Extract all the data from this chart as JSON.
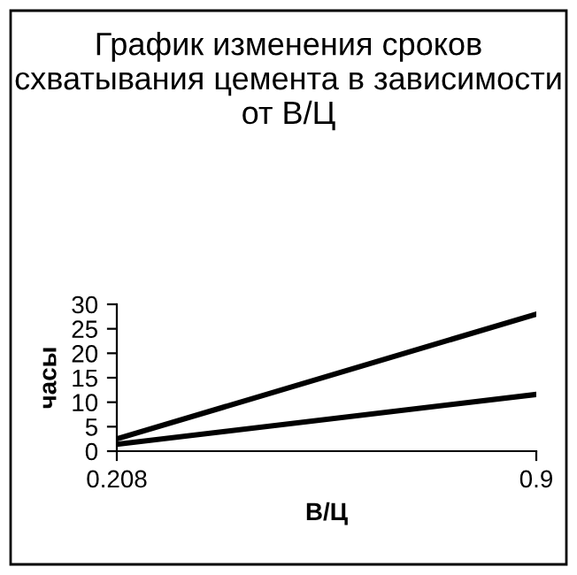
{
  "chart_data": {
    "type": "line",
    "title": "График изменения сроков схватывания цемента в зависимости от В/Ц",
    "xlabel": "В/Ц",
    "ylabel": "часы",
    "x": [
      0.208,
      0.9
    ],
    "series": [
      {
        "color": "#000000",
        "values": [
          2.5,
          28
        ]
      },
      {
        "color": "#000000",
        "values": [
          1.4,
          11.6
        ]
      }
    ],
    "xlim": [
      0.208,
      0.9
    ],
    "xticks": [
      0.208,
      0.9
    ],
    "ylim": [
      0,
      30
    ],
    "yticks": [
      0,
      5,
      10,
      15,
      20,
      25,
      30
    ],
    "grid": false,
    "legend": false,
    "marker": "none",
    "line_style": "solid"
  }
}
